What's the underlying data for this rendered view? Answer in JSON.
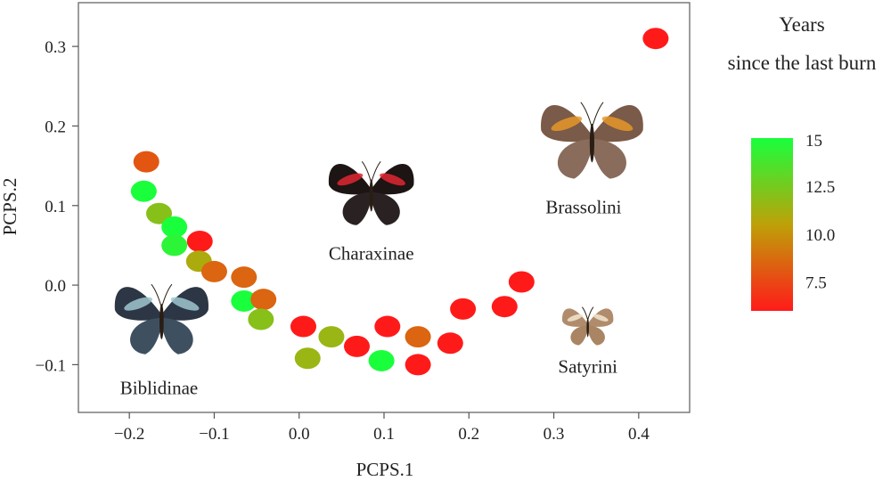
{
  "chart_data": {
    "type": "scatter",
    "xlabel": "PCPS.1",
    "ylabel": "PCPS.2",
    "xlim": [
      -0.26,
      0.46
    ],
    "ylim": [
      -0.16,
      0.355
    ],
    "xticks": [
      -0.2,
      -0.1,
      0.0,
      0.1,
      0.2,
      0.3,
      0.4
    ],
    "xtick_labels": [
      "−0.2",
      "−0.1",
      "0.0",
      "0.1",
      "0.2",
      "0.3",
      "0.4"
    ],
    "yticks": [
      -0.1,
      0.0,
      0.1,
      0.2,
      0.3
    ],
    "ytick_labels": [
      "−0.1",
      "0.0",
      "0.1",
      "0.2",
      "0.3"
    ],
    "grid": false,
    "points": [
      {
        "x": -0.18,
        "y": 0.155,
        "years": 8.0
      },
      {
        "x": -0.183,
        "y": 0.118,
        "years": 15.0
      },
      {
        "x": -0.165,
        "y": 0.09,
        "years": 12.0
      },
      {
        "x": -0.147,
        "y": 0.073,
        "years": 15.0
      },
      {
        "x": -0.147,
        "y": 0.05,
        "years": 14.5
      },
      {
        "x": -0.117,
        "y": 0.055,
        "years": 6.0
      },
      {
        "x": -0.118,
        "y": 0.03,
        "years": 11.0
      },
      {
        "x": -0.1,
        "y": 0.017,
        "years": 8.5
      },
      {
        "x": -0.065,
        "y": 0.01,
        "years": 8.5
      },
      {
        "x": -0.065,
        "y": -0.02,
        "years": 15.0
      },
      {
        "x": -0.042,
        "y": -0.018,
        "years": 8.5
      },
      {
        "x": -0.045,
        "y": -0.043,
        "years": 12.0
      },
      {
        "x": 0.005,
        "y": -0.052,
        "years": 6.0
      },
      {
        "x": 0.01,
        "y": -0.092,
        "years": 11.5
      },
      {
        "x": 0.038,
        "y": -0.065,
        "years": 11.5
      },
      {
        "x": 0.068,
        "y": -0.077,
        "years": 6.0
      },
      {
        "x": 0.097,
        "y": -0.095,
        "years": 15.0
      },
      {
        "x": 0.104,
        "y": -0.052,
        "years": 6.0
      },
      {
        "x": 0.14,
        "y": -0.065,
        "years": 8.5
      },
      {
        "x": 0.14,
        "y": -0.1,
        "years": 6.0
      },
      {
        "x": 0.178,
        "y": -0.073,
        "years": 6.0
      },
      {
        "x": 0.193,
        "y": -0.03,
        "years": 6.0
      },
      {
        "x": 0.242,
        "y": -0.027,
        "years": 6.0
      },
      {
        "x": 0.262,
        "y": 0.004,
        "years": 6.0
      },
      {
        "x": 0.42,
        "y": 0.31,
        "years": 6.0
      }
    ],
    "colorbar": {
      "title_lines": [
        "Years",
        "since the last burn"
      ],
      "min": 6,
      "max": 15,
      "ticks": [
        15,
        12.5,
        10.0,
        7.5
      ],
      "tick_labels": [
        "15",
        "12.5",
        "10.0",
        "7.5"
      ],
      "color_low": "#ff1a1a",
      "color_high": "#19ff3c"
    },
    "annotations": [
      {
        "label": "Biblidinae",
        "x": -0.165,
        "y": -0.137
      },
      {
        "label": "Charaxinae",
        "x": 0.085,
        "y": 0.032
      },
      {
        "label": "Brassolini",
        "x": 0.335,
        "y": 0.09
      },
      {
        "label": "Satyrini",
        "x": 0.34,
        "y": -0.11
      }
    ],
    "butterfly_icons": [
      {
        "name": "biblidinae-butterfly-icon",
        "x": -0.162,
        "y": -0.04,
        "w": 0.14,
        "fore": "#2c3644",
        "hind": "#3e5060",
        "accent": "#9fc6d0",
        "span": 0.11
      },
      {
        "name": "charaxinae-butterfly-icon",
        "x": 0.085,
        "y": 0.118,
        "w": 0.13,
        "fore": "#1d1414",
        "hind": "#2a2222",
        "accent": "#e02630",
        "span": 0.1
      },
      {
        "name": "brassolini-butterfly-icon",
        "x": 0.345,
        "y": 0.185,
        "w": 0.16,
        "fore": "#7a5a48",
        "hind": "#8a6c5c",
        "accent": "#e6962a",
        "span": 0.12
      },
      {
        "name": "satyrini-butterfly-icon",
        "x": 0.34,
        "y": -0.05,
        "w": 0.09,
        "fore": "#b08c6c",
        "hind": "#a98563",
        "accent": "#f2e6d0",
        "span": 0.06
      }
    ]
  }
}
